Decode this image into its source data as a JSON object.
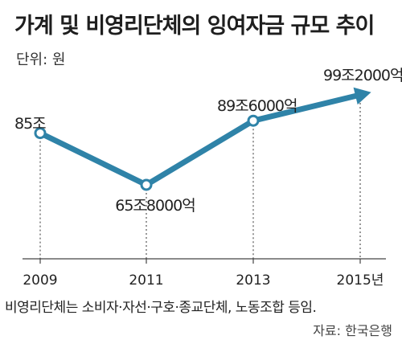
{
  "title": "가계 및 비영리단체의 잉여자금 규모 추이",
  "unit_label": "단위: 원",
  "note": "비영리단체는 소비자·자선·구호·종교단체, 노동조합 등임.",
  "source": "자료: 한국은행",
  "colors": {
    "line": "#2f83a8",
    "text": "#222222",
    "axis": "#444444"
  },
  "chart_data": {
    "type": "line",
    "x": [
      "2009",
      "2011",
      "2013",
      "2015년"
    ],
    "values": [
      850000,
      658000,
      896000,
      992000
    ],
    "data_labels": [
      "85조",
      "65조8000억",
      "89조6000억",
      "99조2000억"
    ],
    "xlabel": "",
    "ylabel": "",
    "grid": false
  }
}
